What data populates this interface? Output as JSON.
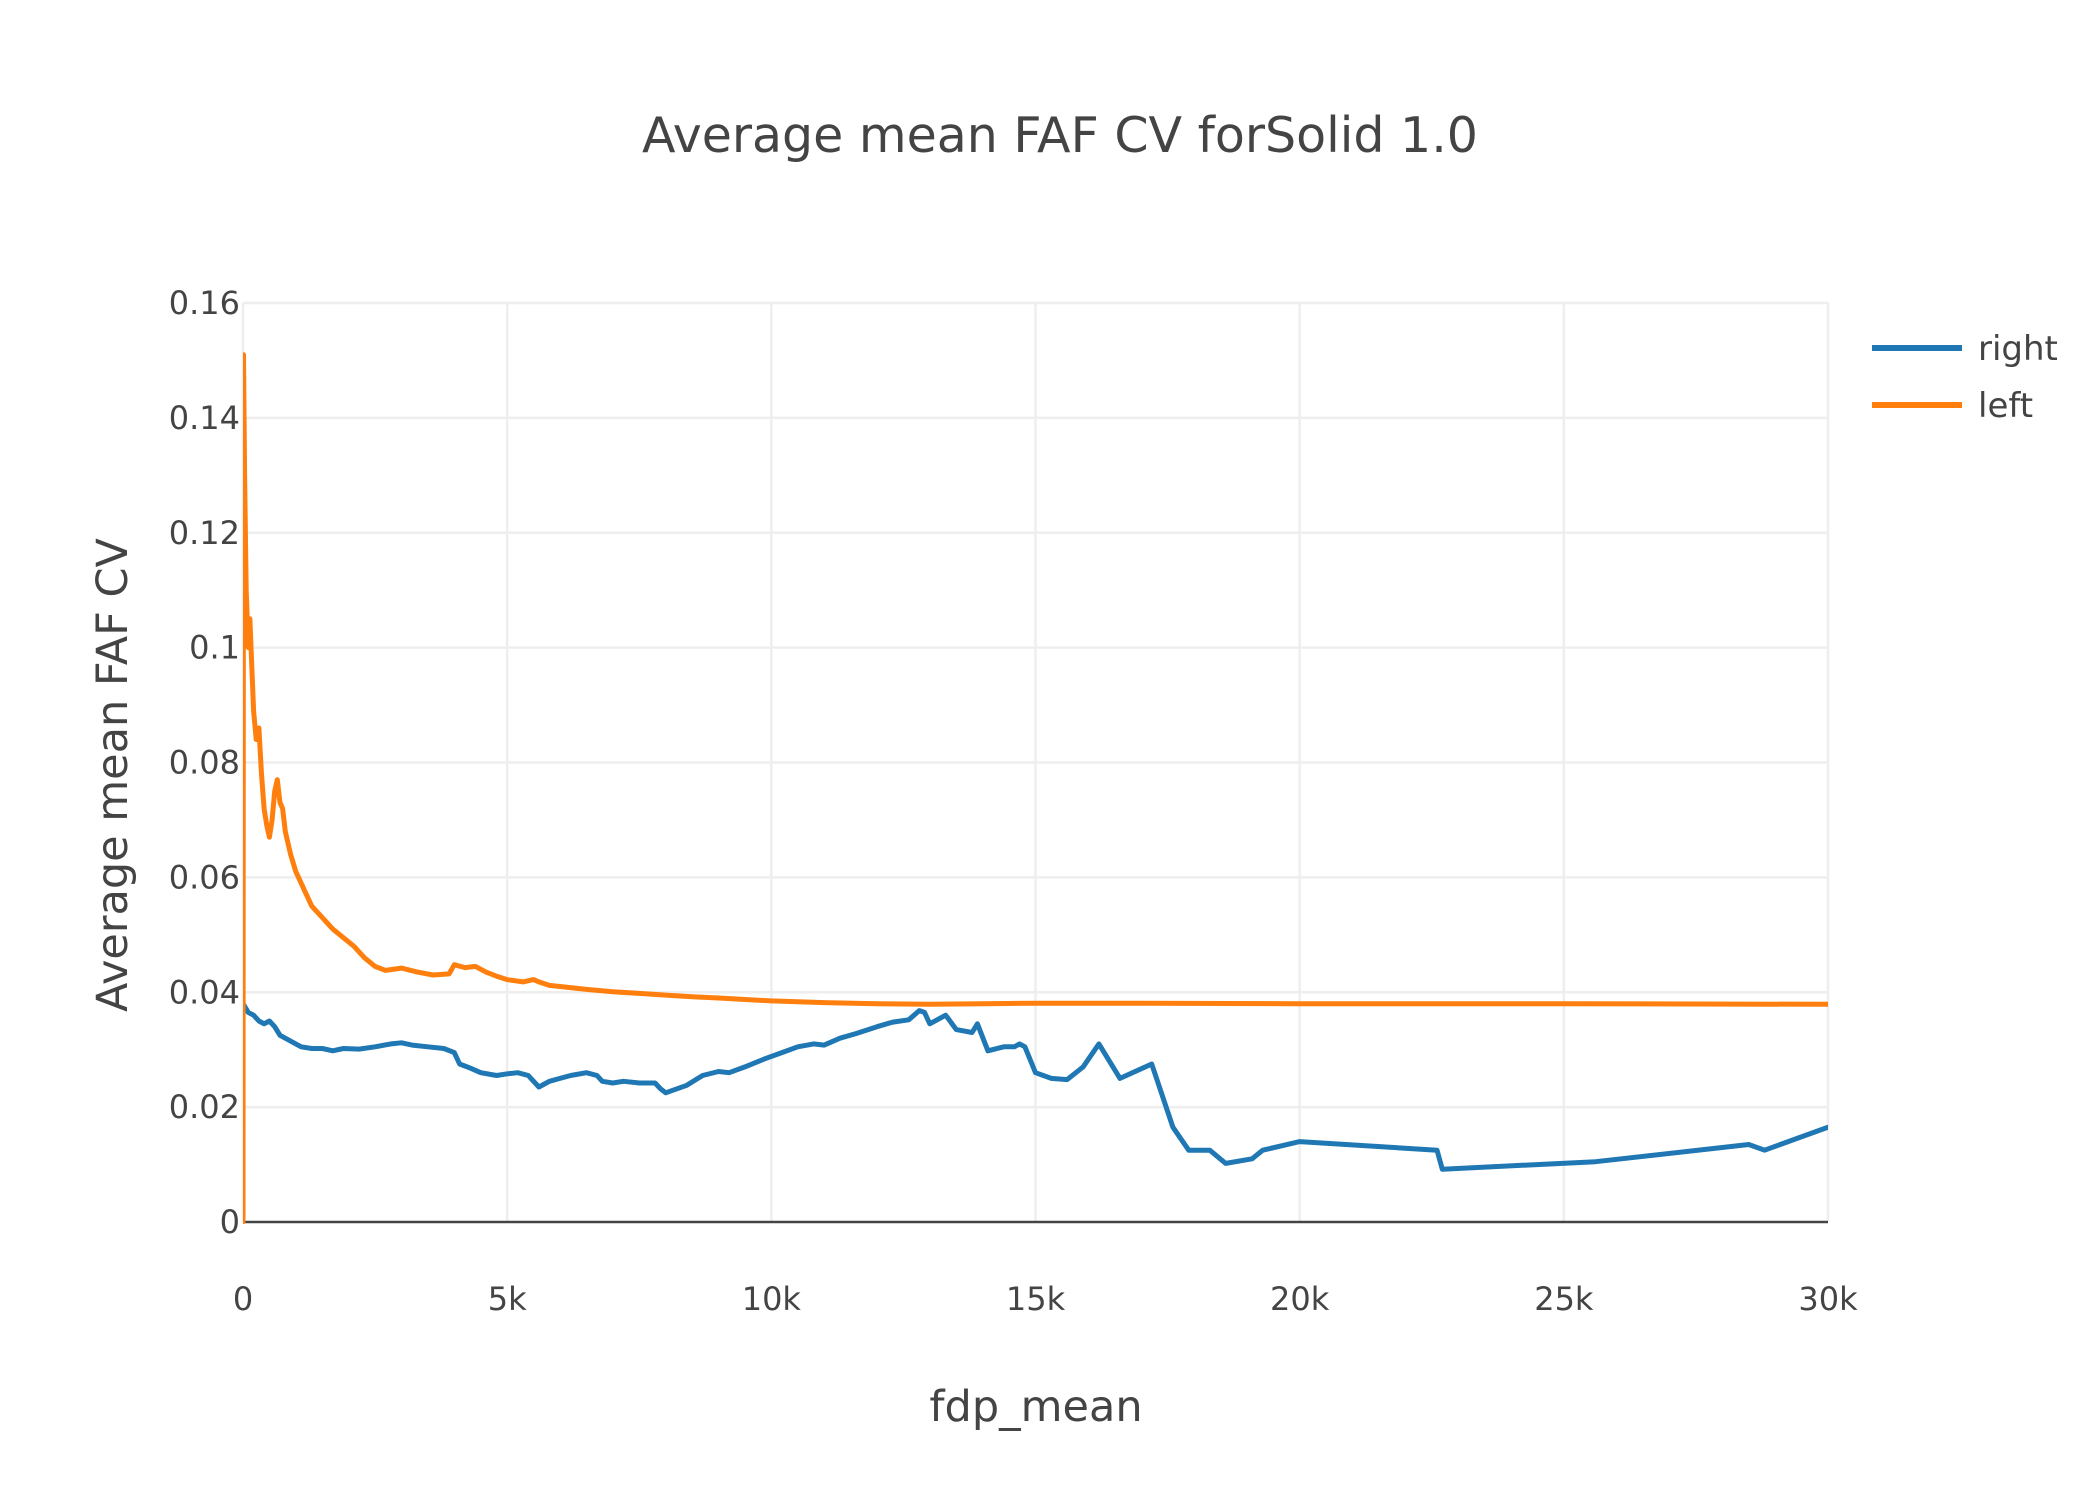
{
  "chart_data": {
    "type": "line",
    "title": "Average mean FAF CV forSolid 1.0",
    "xlabel": "fdp_mean",
    "ylabel": "Average mean FAF CV",
    "xlim": [
      0,
      30000
    ],
    "ylim": [
      0,
      0.16
    ],
    "x_ticks": [
      0,
      5000,
      10000,
      15000,
      20000,
      25000,
      30000
    ],
    "x_tick_labels": [
      "0",
      "5k",
      "10k",
      "15k",
      "20k",
      "25k",
      "30k"
    ],
    "y_ticks": [
      0,
      0.02,
      0.04,
      0.06,
      0.08,
      0.1,
      0.12,
      0.14,
      0.16
    ],
    "y_tick_labels": [
      "0",
      "0.02",
      "0.04",
      "0.06",
      "0.08",
      "0.1",
      "0.12",
      "0.14",
      "0.16"
    ],
    "grid": true,
    "legend_position": "top-right",
    "series": [
      {
        "name": "right",
        "color": "#1f77b4",
        "x": [
          0,
          100,
          200,
          300,
          400,
          500,
          600,
          700,
          800,
          1000,
          1100,
          1300,
          1500,
          1700,
          1900,
          2200,
          2500,
          2800,
          3000,
          3200,
          3500,
          3800,
          4000,
          4100,
          4300,
          4500,
          4800,
          5000,
          5200,
          5400,
          5500,
          5600,
          5800,
          6000,
          6200,
          6500,
          6700,
          6800,
          7000,
          7200,
          7500,
          7800,
          7900,
          8000,
          8400,
          8700,
          9000,
          9200,
          9500,
          9900,
          10200,
          10500,
          10800,
          11000,
          11300,
          11600,
          12000,
          12300,
          12600,
          12800,
          12900,
          13000,
          13300,
          13500,
          13800,
          13900,
          14100,
          14400,
          14600,
          14700,
          14800,
          15000,
          15300,
          15600,
          15900,
          16200,
          16600,
          17200,
          17600,
          17900,
          18300,
          18600,
          19100,
          19300,
          20000,
          22600,
          22700,
          25600,
          28500,
          28800,
          30000
        ],
        "y": [
          0.038,
          0.0365,
          0.036,
          0.035,
          0.0345,
          0.035,
          0.034,
          0.0325,
          0.032,
          0.031,
          0.0305,
          0.0302,
          0.0302,
          0.0298,
          0.0302,
          0.0301,
          0.0305,
          0.031,
          0.0312,
          0.0308,
          0.0305,
          0.0302,
          0.0295,
          0.0275,
          0.0268,
          0.026,
          0.0255,
          0.0258,
          0.026,
          0.0255,
          0.0245,
          0.0235,
          0.0245,
          0.025,
          0.0255,
          0.026,
          0.0255,
          0.0245,
          0.0242,
          0.0245,
          0.0242,
          0.0242,
          0.0232,
          0.0225,
          0.0238,
          0.0255,
          0.0262,
          0.026,
          0.027,
          0.0285,
          0.0295,
          0.0305,
          0.031,
          0.0308,
          0.032,
          0.0328,
          0.034,
          0.0348,
          0.0352,
          0.0368,
          0.0365,
          0.0345,
          0.036,
          0.0335,
          0.033,
          0.0345,
          0.0298,
          0.0305,
          0.0305,
          0.031,
          0.0305,
          0.026,
          0.025,
          0.0248,
          0.027,
          0.031,
          0.025,
          0.0275,
          0.0165,
          0.0125,
          0.0125,
          0.0102,
          0.011,
          0.0125,
          0.014,
          0.0125,
          0.0092,
          0.0105,
          0.0135,
          0.0125,
          0.0165
        ]
      },
      {
        "name": "left",
        "color": "#ff7f0e",
        "x": [
          0,
          10,
          30,
          60,
          100,
          130,
          160,
          200,
          250,
          300,
          350,
          400,
          450,
          500,
          550,
          600,
          650,
          700,
          750,
          800,
          900,
          1000,
          1100,
          1200,
          1300,
          1500,
          1700,
          1900,
          2100,
          2300,
          2500,
          2700,
          3000,
          3300,
          3600,
          3900,
          4000,
          4200,
          4400,
          4600,
          4800,
          5000,
          5300,
          5500,
          5600,
          5800,
          6000,
          6500,
          7000,
          7500,
          8000,
          8500,
          9000,
          10000,
          11000,
          12000,
          13000,
          14000,
          15000,
          17000,
          20000,
          25000,
          30000
        ],
        "y": [
          0,
          0.151,
          0.13,
          0.11,
          0.1,
          0.105,
          0.098,
          0.089,
          0.084,
          0.086,
          0.078,
          0.072,
          0.069,
          0.067,
          0.07,
          0.075,
          0.077,
          0.073,
          0.072,
          0.068,
          0.064,
          0.061,
          0.059,
          0.057,
          0.055,
          0.053,
          0.051,
          0.0495,
          0.048,
          0.046,
          0.0445,
          0.0438,
          0.0442,
          0.0435,
          0.043,
          0.0432,
          0.0448,
          0.0443,
          0.0445,
          0.0435,
          0.0428,
          0.0422,
          0.0418,
          0.0422,
          0.0418,
          0.0412,
          0.041,
          0.0405,
          0.0401,
          0.0398,
          0.0395,
          0.0392,
          0.039,
          0.0385,
          0.0382,
          0.038,
          0.0379,
          0.038,
          0.0381,
          0.0381,
          0.038,
          0.038,
          0.0379
        ]
      }
    ]
  }
}
